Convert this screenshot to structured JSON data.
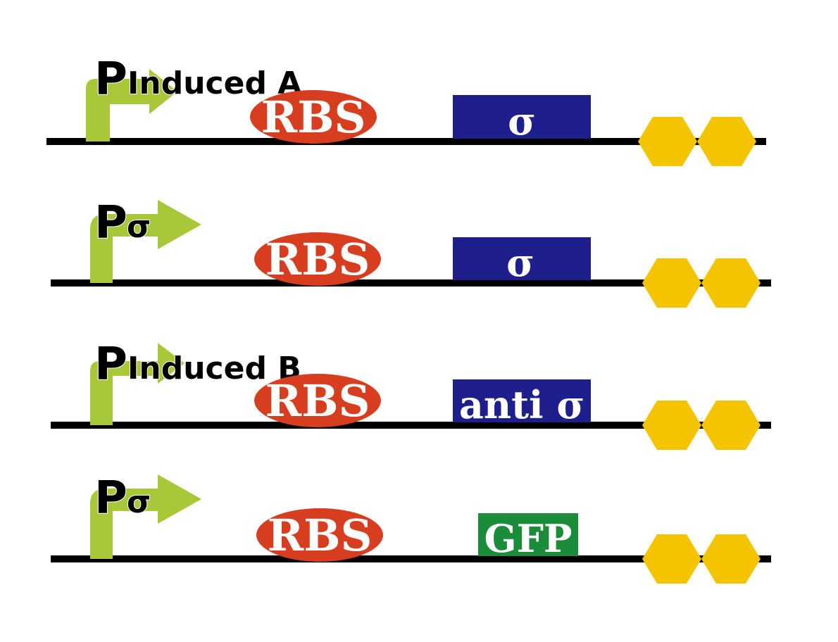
{
  "colors": {
    "backbone": "#000000",
    "promoter_arrow": "#A8C83A",
    "rbs": "#D73E20",
    "cds_sigma": "#1E1F8C",
    "cds_gfp": "#1A8C3A",
    "terminator": "#F5C400",
    "label_text": "#ffffff"
  },
  "constructs": [
    {
      "promoter": {
        "letter": "P",
        "subscript": "Induced A",
        "icon": "promoter-arrow-icon"
      },
      "rbs": {
        "label": "RBS",
        "icon": "rbs-ellipse"
      },
      "cds": {
        "label": "σ",
        "color": "#1E1F8C"
      },
      "terminator": {
        "icon": "double-hexagon-terminator-icon"
      }
    },
    {
      "promoter": {
        "letter": "P",
        "subscript": "σ",
        "icon": "promoter-arrow-icon"
      },
      "rbs": {
        "label": "RBS",
        "icon": "rbs-ellipse"
      },
      "cds": {
        "label": "σ",
        "color": "#1E1F8C"
      },
      "terminator": {
        "icon": "double-hexagon-terminator-icon"
      }
    },
    {
      "promoter": {
        "letter": "P",
        "subscript": "Induced B",
        "icon": "promoter-arrow-icon"
      },
      "rbs": {
        "label": "RBS",
        "icon": "rbs-ellipse"
      },
      "cds": {
        "label": "anti σ",
        "color": "#1E1F8C"
      },
      "terminator": {
        "icon": "double-hexagon-terminator-icon"
      }
    },
    {
      "promoter": {
        "letter": "P",
        "subscript": "σ",
        "icon": "promoter-arrow-icon"
      },
      "rbs": {
        "label": "RBS",
        "icon": "rbs-ellipse"
      },
      "cds": {
        "label": "GFP",
        "color": "#1A8C3A"
      },
      "terminator": {
        "icon": "double-hexagon-terminator-icon"
      }
    }
  ]
}
